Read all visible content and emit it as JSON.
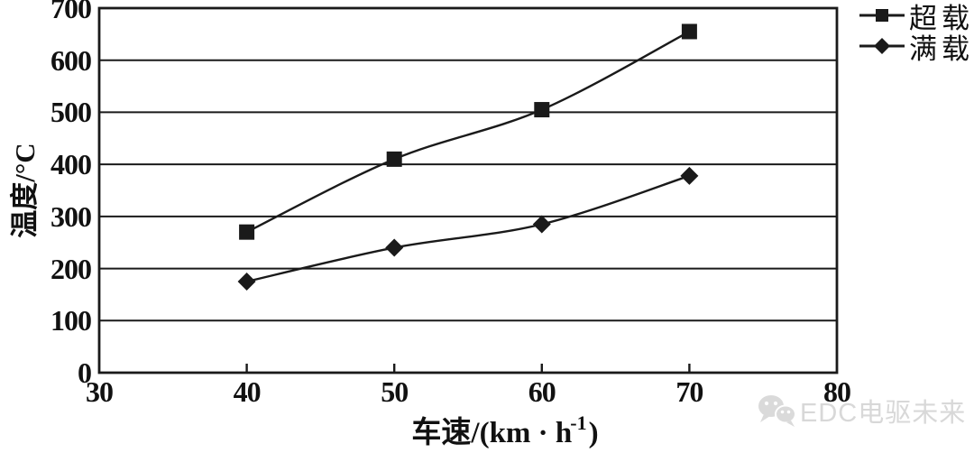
{
  "chart_data": {
    "type": "line",
    "title": "",
    "x": [
      40,
      50,
      60,
      70
    ],
    "series": [
      {
        "name": "超载",
        "marker": "square",
        "values": [
          270,
          410,
          505,
          655
        ]
      },
      {
        "name": "满载",
        "marker": "diamond",
        "values": [
          175,
          240,
          285,
          378
        ]
      }
    ],
    "xlabel": "车速/(km·h⁻¹)",
    "xlabel_parts": {
      "prefix": "车速/(km · h",
      "sup": "-1",
      "suffix": ")"
    },
    "ylabel": "温度/°C",
    "xlim": [
      30,
      80
    ],
    "ylim": [
      0,
      700
    ],
    "x_ticks": [
      30,
      40,
      50,
      60,
      70,
      80
    ],
    "y_ticks": [
      0,
      100,
      200,
      300,
      400,
      500,
      600,
      700
    ],
    "grid": "horizontal",
    "legend_position": "outside-top-right",
    "line_color": "#1a1a1a",
    "background_color": "#ffffff"
  },
  "watermark": {
    "icon": "wechat-icon",
    "text": "EDC电驱未来",
    "color": "#d8d8d8"
  }
}
